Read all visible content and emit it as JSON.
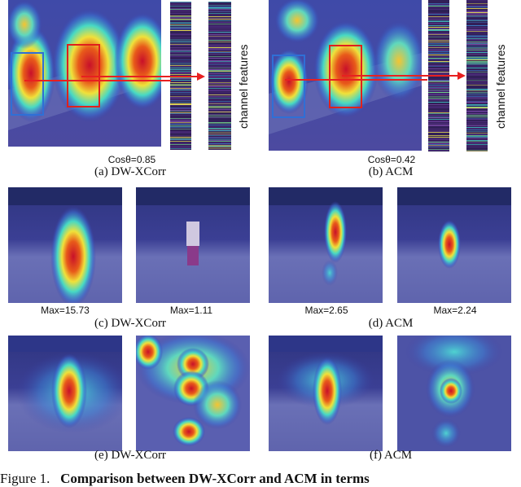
{
  "panel_a": {
    "cos_label": "Cosθ=0.85",
    "caption": "(a) DW-XCorr",
    "channel_label": "channel features"
  },
  "panel_b": {
    "cos_label": "Cosθ=0.42",
    "caption": "(b) ACM",
    "channel_label": "channel features"
  },
  "panel_c": {
    "max_left": "Max=15.73",
    "max_right": "Max=1.11",
    "caption": "(c) DW-XCorr"
  },
  "panel_d": {
    "max_left": "Max=2.65",
    "max_right": "Max=2.24",
    "caption": "(d) ACM"
  },
  "panel_e": {
    "caption": "(e) DW-XCorr"
  },
  "panel_f": {
    "caption": "(f) ACM"
  },
  "figure_caption": {
    "prefix": "Figure 1.",
    "bold": "Comparison between DW-XCorr and ACM in terms"
  },
  "colors": {
    "heat_red": "#d8261a",
    "heat_yellow": "#f2e33b",
    "heat_cyan": "#3fd6c8",
    "heat_blue": "#3b3fa8",
    "box_red": "#e0201c",
    "box_blue": "#2f6fd6",
    "arrow_red": "#e82020"
  }
}
